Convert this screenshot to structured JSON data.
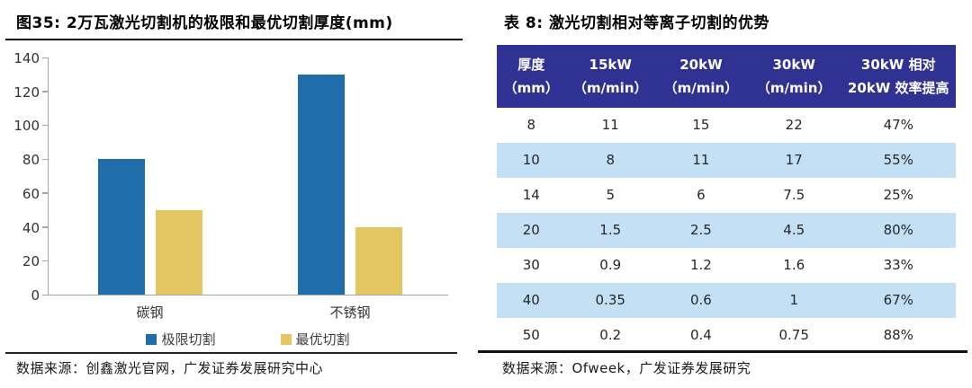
{
  "left_panel": {
    "title": "图35: 2万瓦激光切割机的极限和最优切割厚度(mm)",
    "source": "数据来源：创鑫激光官网，广发证券发展研究中心"
  },
  "right_panel": {
    "title": "表 8: 激光切割相对等离子切割的优势",
    "source": "数据来源：Ofweek，广发证券发展研究"
  },
  "chart_data": [
    {
      "type": "bar",
      "title": "2万瓦激光切割机的极限和最优切割厚度(mm)",
      "categories": [
        "碳钢",
        "不锈钢"
      ],
      "series": [
        {
          "name": "极限切割",
          "color": "#1F6DAA",
          "values": [
            80,
            130
          ]
        },
        {
          "name": "最优切割",
          "color": "#E2C761",
          "values": [
            50,
            40
          ]
        }
      ],
      "xlabel": "",
      "ylabel": "",
      "ylim": [
        0,
        140
      ],
      "yticks": [
        0,
        20,
        40,
        60,
        80,
        100,
        120,
        140
      ],
      "grid": false,
      "legend_position": "bottom",
      "axis_color": "#A6A6A6"
    },
    {
      "type": "table",
      "title": "激光切割相对等离子切割的优势",
      "columns": [
        {
          "line1": "厚度",
          "line2": "（mm）"
        },
        {
          "line1": "15kW",
          "line2": "（m/min）"
        },
        {
          "line1": "20kW",
          "line2": "（m/min）"
        },
        {
          "line1": "30kW",
          "line2": "（m/min）"
        },
        {
          "line1": "30kW 相对",
          "line2": "20kW 效率提高"
        }
      ],
      "rows": [
        [
          "8",
          "11",
          "15",
          "22",
          "47%"
        ],
        [
          "10",
          "8",
          "11",
          "17",
          "55%"
        ],
        [
          "14",
          "5",
          "6",
          "7.5",
          "25%"
        ],
        [
          "20",
          "1.5",
          "2.5",
          "4.5",
          "80%"
        ],
        [
          "30",
          "0.9",
          "1.2",
          "1.6",
          "33%"
        ],
        [
          "40",
          "0.35",
          "0.6",
          "1",
          "67%"
        ],
        [
          "50",
          "0.2",
          "0.4",
          "0.75",
          "88%"
        ]
      ],
      "colors": {
        "header_bg": "#2F3293",
        "header_text": "#FFFFFF",
        "stripe_bg": "#C3E0F4",
        "text": "#262626"
      }
    }
  ]
}
